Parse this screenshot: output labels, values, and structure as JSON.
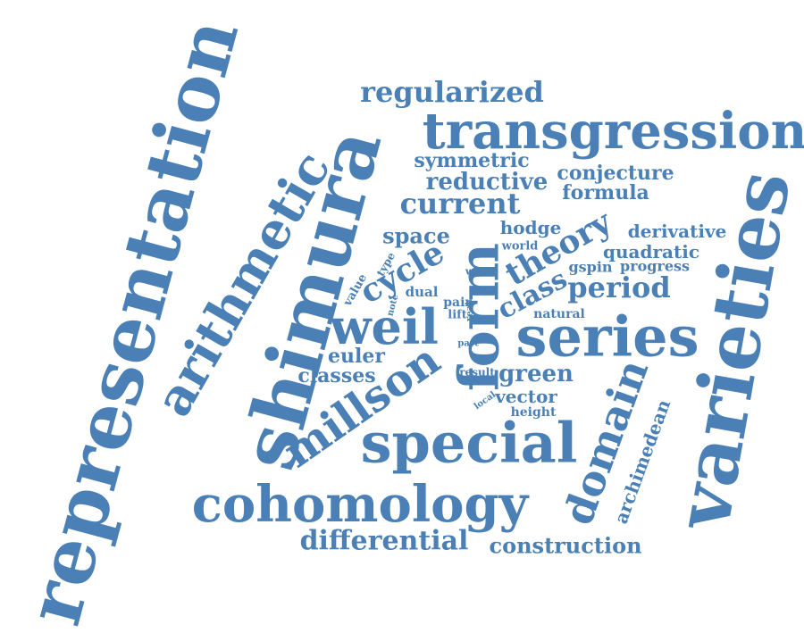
{
  "colors": {
    "word": "#4a80b5",
    "background": "#ffffff"
  },
  "words": [
    "representation",
    "varieties",
    "shimura",
    "arithmetic",
    "transgression",
    "series",
    "special",
    "cohomology",
    "form",
    "weil",
    "millson",
    "domain",
    "regularized",
    "current",
    "reductive",
    "symmetric",
    "conjecture",
    "formula",
    "theory",
    "cycle",
    "period",
    "space",
    "class",
    "derivative",
    "quadratic",
    "progress",
    "gspin",
    "hodge",
    "world",
    "differential",
    "construction",
    "archimedean",
    "euler",
    "classes",
    "green",
    "vector",
    "height",
    "natural",
    "dual",
    "pair",
    "lift",
    "real",
    "note",
    "value",
    "type",
    "work",
    "part",
    "result",
    "local"
  ]
}
